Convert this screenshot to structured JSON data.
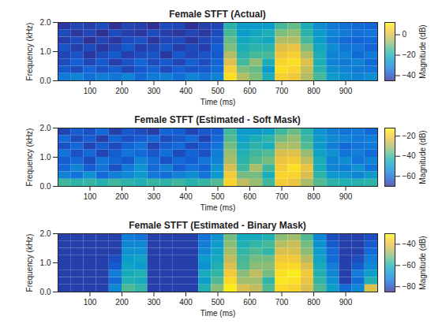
{
  "chart_data": [
    {
      "type": "heatmap",
      "title": "Female STFT (Actual)",
      "x_label": "Time (ms)",
      "y_label": "Frequency (kHz)",
      "xlim": [
        0,
        1000
      ],
      "xticks": [
        100,
        200,
        300,
        400,
        500,
        600,
        700,
        800,
        900
      ],
      "ylim": [
        0,
        2
      ],
      "yticks": [
        0,
        1,
        2
      ],
      "x": [
        20,
        60,
        100,
        140,
        180,
        220,
        260,
        300,
        340,
        380,
        420,
        460,
        500,
        540,
        580,
        620,
        660,
        700,
        740,
        780,
        820,
        860,
        900,
        940,
        980
      ],
      "y": [
        0.125,
        0.375,
        0.625,
        0.875,
        1.125,
        1.375,
        1.625,
        1.875
      ],
      "cells": [
        [
          -32,
          -30,
          -34,
          -31,
          -33,
          -30,
          -35,
          -32,
          -31,
          -34,
          -30,
          -33,
          -30,
          8,
          -5,
          -10,
          -20,
          5,
          3,
          -5,
          -15,
          -25,
          -28,
          -30,
          -28
        ],
        [
          -38,
          -40,
          -36,
          -39,
          -37,
          -41,
          -38,
          -36,
          -40,
          -37,
          -39,
          -38,
          -35,
          5,
          -10,
          -12,
          -25,
          8,
          6,
          -3,
          -18,
          -28,
          -30,
          -32,
          -33
        ],
        [
          -40,
          -37,
          -41,
          -38,
          -42,
          -39,
          -36,
          -40,
          -38,
          -41,
          -37,
          -40,
          -36,
          0,
          -15,
          -8,
          -20,
          6,
          8,
          0,
          -20,
          -30,
          -32,
          -30,
          -35
        ],
        [
          -41,
          -39,
          -43,
          -40,
          -38,
          -42,
          -40,
          -39,
          -43,
          -38,
          -41,
          -39,
          -38,
          -5,
          -18,
          -15,
          -15,
          3,
          5,
          -5,
          -20,
          -30,
          -30,
          -35,
          -32
        ],
        [
          -39,
          -42,
          -40,
          -43,
          -41,
          -38,
          -42,
          -41,
          -39,
          -42,
          -40,
          -42,
          -37,
          -10,
          -20,
          -18,
          -18,
          0,
          2,
          -10,
          -22,
          -28,
          -33,
          -33,
          -36
        ],
        [
          -42,
          -40,
          -44,
          -41,
          -43,
          -40,
          -39,
          -43,
          -41,
          -40,
          -43,
          -41,
          -39,
          -12,
          -22,
          -20,
          -22,
          -5,
          -5,
          -15,
          -25,
          -32,
          -35,
          -36,
          -35
        ],
        [
          -40,
          -43,
          -41,
          -44,
          -40,
          -42,
          -43,
          -40,
          -42,
          -43,
          -41,
          -43,
          -40,
          -15,
          -25,
          -22,
          -20,
          -10,
          -8,
          -18,
          -25,
          -30,
          -32,
          -34,
          -33
        ],
        [
          -43,
          -41,
          -42,
          -40,
          -44,
          -41,
          -42,
          -44,
          -40,
          -41,
          -44,
          -42,
          -41,
          -18,
          -25,
          -25,
          -25,
          -15,
          -12,
          -20,
          -28,
          -32,
          -34,
          -35,
          -36
        ]
      ],
      "color_range": [
        -45,
        12
      ],
      "color_ticks": [
        -40,
        -20,
        0
      ],
      "color_label": "Magnitude (dB)"
    },
    {
      "type": "heatmap",
      "title": "Female STFT (Estimated - Soft Mask)",
      "x_label": "Time (ms)",
      "y_label": "Frequency (kHz)",
      "xlim": [
        0,
        1000
      ],
      "xticks": [
        100,
        200,
        300,
        400,
        500,
        600,
        700,
        800,
        900
      ],
      "ylim": [
        0,
        2
      ],
      "yticks": [
        0,
        1,
        2
      ],
      "x": [
        20,
        60,
        100,
        140,
        180,
        220,
        260,
        300,
        340,
        380,
        420,
        460,
        500,
        540,
        580,
        620,
        660,
        700,
        740,
        780,
        820,
        860,
        900,
        940,
        980
      ],
      "y": [
        0.125,
        0.375,
        0.625,
        0.875,
        1.125,
        1.375,
        1.625,
        1.875
      ],
      "cells": [
        [
          -40,
          -42,
          -41,
          -43,
          -40,
          -42,
          -44,
          -41,
          -42,
          -40,
          -43,
          -41,
          -38,
          -18,
          -28,
          -32,
          -40,
          -20,
          -22,
          -30,
          -38,
          -42,
          -44,
          -43,
          -42
        ],
        [
          -55,
          -58,
          -52,
          -60,
          -56,
          -54,
          -50,
          -57,
          -59,
          -55,
          -53,
          -58,
          -50,
          -20,
          -35,
          -35,
          -45,
          -18,
          -18,
          -25,
          -42,
          -50,
          -52,
          -55,
          -50
        ],
        [
          -60,
          -55,
          -62,
          -58,
          -64,
          -57,
          -52,
          -60,
          -56,
          -62,
          -58,
          -61,
          -52,
          -25,
          -40,
          -30,
          -40,
          -20,
          -16,
          -22,
          -45,
          -55,
          -56,
          -52,
          -58
        ],
        [
          -62,
          -60,
          -65,
          -58,
          -61,
          -63,
          -55,
          -59,
          -64,
          -60,
          -62,
          -58,
          -55,
          -30,
          -42,
          -38,
          -35,
          -22,
          -20,
          -28,
          -45,
          -55,
          -53,
          -58,
          -55
        ],
        [
          -58,
          -64,
          -60,
          -66,
          -62,
          -58,
          -60,
          -63,
          -59,
          -65,
          -61,
          -64,
          -56,
          -32,
          -44,
          -40,
          -38,
          -25,
          -24,
          -32,
          -48,
          -52,
          -58,
          -56,
          -60
        ],
        [
          -64,
          -60,
          -66,
          -62,
          -65,
          -61,
          -58,
          -66,
          -62,
          -60,
          -65,
          -62,
          -58,
          -35,
          -46,
          -42,
          -45,
          -30,
          -30,
          -38,
          -50,
          -56,
          -60,
          -58,
          -57
        ],
        [
          -60,
          -65,
          -62,
          -67,
          -61,
          -64,
          -62,
          -60,
          -65,
          -63,
          -60,
          -66,
          -60,
          -38,
          -48,
          -45,
          -42,
          -35,
          -32,
          -40,
          -50,
          -54,
          -55,
          -57,
          -56
        ],
        [
          -66,
          -62,
          -64,
          -60,
          -67,
          -63,
          -65,
          -67,
          -61,
          -62,
          -66,
          -63,
          -62,
          -40,
          -50,
          -50,
          -48,
          -40,
          -36,
          -42,
          -52,
          -56,
          -58,
          -57,
          -60
        ]
      ],
      "color_range": [
        -70,
        -12
      ],
      "color_ticks": [
        -60,
        -40,
        -20
      ],
      "color_label": "Magnitude (dB)"
    },
    {
      "type": "heatmap",
      "title": "Female STFT (Estimated - Binary Mask)",
      "x_label": "Time (ms)",
      "y_label": "Frequency (kHz)",
      "xlim": [
        0,
        1000
      ],
      "xticks": [
        100,
        200,
        300,
        400,
        500,
        600,
        700,
        800,
        900
      ],
      "ylim": [
        0,
        2
      ],
      "yticks": [
        0,
        1,
        2
      ],
      "x": [
        20,
        60,
        100,
        140,
        180,
        220,
        260,
        300,
        340,
        380,
        420,
        460,
        500,
        540,
        580,
        620,
        660,
        700,
        740,
        780,
        820,
        860,
        900,
        940,
        980
      ],
      "y": [
        0.125,
        0.375,
        0.625,
        0.875,
        1.125,
        1.375,
        1.625,
        1.875
      ],
      "cells": [
        [
          -82,
          -82,
          -82,
          -82,
          -70,
          -55,
          -58,
          -82,
          -82,
          -82,
          -82,
          -60,
          -50,
          -32,
          -42,
          -45,
          -55,
          -35,
          -36,
          -42,
          -55,
          -65,
          -75,
          -70,
          -42
        ],
        [
          -82,
          -82,
          -82,
          -82,
          -75,
          -60,
          -62,
          -82,
          -82,
          -82,
          -82,
          -65,
          -55,
          -35,
          -48,
          -48,
          -58,
          -33,
          -34,
          -40,
          -58,
          -68,
          -82,
          -75,
          -60
        ],
        [
          -82,
          -82,
          -82,
          -82,
          -72,
          -62,
          -60,
          -82,
          -82,
          -82,
          -82,
          -62,
          -58,
          -38,
          -50,
          -45,
          -52,
          -34,
          -32,
          -38,
          -60,
          -70,
          -82,
          -72,
          -65
        ],
        [
          -82,
          -82,
          -82,
          -82,
          -78,
          -64,
          -66,
          -82,
          -82,
          -82,
          -82,
          -68,
          -60,
          -42,
          -55,
          -50,
          -50,
          -36,
          -35,
          -42,
          -62,
          -72,
          -82,
          -78,
          -70
        ],
        [
          -82,
          -82,
          -82,
          -82,
          -80,
          -66,
          -64,
          -82,
          -82,
          -82,
          -82,
          -66,
          -62,
          -45,
          -56,
          -52,
          -52,
          -38,
          -38,
          -46,
          -64,
          -75,
          -82,
          -80,
          -72
        ],
        [
          -82,
          -82,
          -82,
          -82,
          -82,
          -68,
          -68,
          -82,
          -82,
          -82,
          -82,
          -70,
          -64,
          -48,
          -58,
          -55,
          -58,
          -42,
          -42,
          -50,
          -66,
          -76,
          -82,
          -82,
          -75
        ],
        [
          -82,
          -82,
          -82,
          -82,
          -82,
          -70,
          -70,
          -82,
          -82,
          -82,
          -82,
          -72,
          -66,
          -50,
          -60,
          -58,
          -56,
          -46,
          -44,
          -52,
          -68,
          -78,
          -82,
          -82,
          -78
        ],
        [
          -82,
          -82,
          -82,
          -82,
          -82,
          -72,
          -74,
          -82,
          -82,
          -82,
          -82,
          -74,
          -68,
          -52,
          -62,
          -62,
          -60,
          -50,
          -48,
          -55,
          -70,
          -80,
          -82,
          -82,
          -80
        ]
      ],
      "color_range": [
        -85,
        -30
      ],
      "color_ticks": [
        -80,
        -60,
        -40
      ],
      "color_label": "Magnitude (dB)"
    }
  ]
}
